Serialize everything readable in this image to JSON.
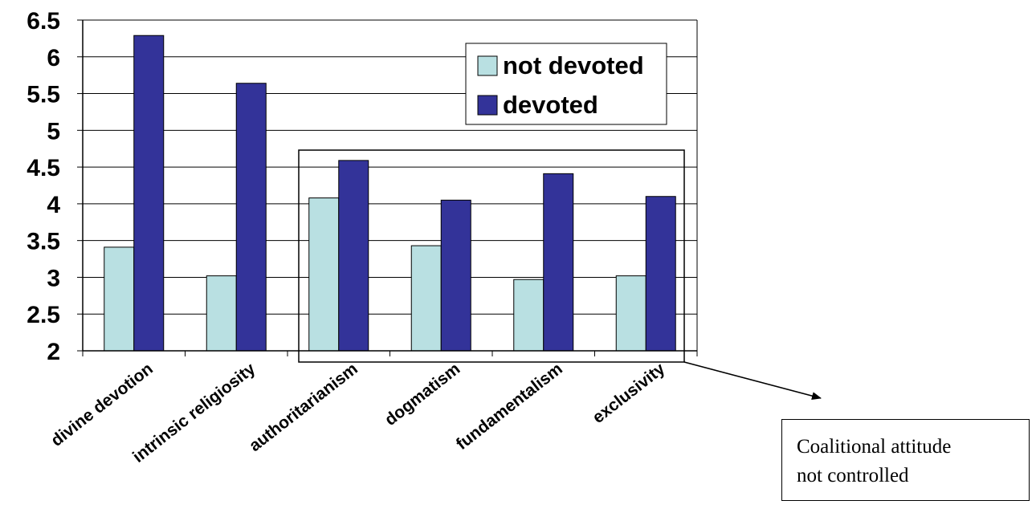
{
  "chart_data": {
    "type": "bar",
    "categories": [
      "divine devotion",
      "intrinsic religiosity",
      "authoritarianism",
      "dogmatism",
      "fundamentalism",
      "exclusivity"
    ],
    "series": [
      {
        "name": "not devoted",
        "values": [
          3.41,
          3.02,
          4.08,
          3.43,
          2.97,
          3.02
        ],
        "color": "#b9e0e2"
      },
      {
        "name": "devoted",
        "values": [
          6.29,
          5.64,
          4.59,
          4.05,
          4.41,
          4.1
        ],
        "color": "#333399"
      }
    ],
    "ylim": [
      2,
      6.5
    ],
    "yticks": [
      "2",
      "2.5",
      "3",
      "3.5",
      "4",
      "4.5",
      "5",
      "5.5",
      "6",
      "6.5"
    ],
    "grid": true,
    "legend_position": "top-right",
    "title": "",
    "xlabel": "",
    "ylabel": ""
  },
  "annotation": {
    "text": "Coalitional attitude\nnot controlled"
  }
}
